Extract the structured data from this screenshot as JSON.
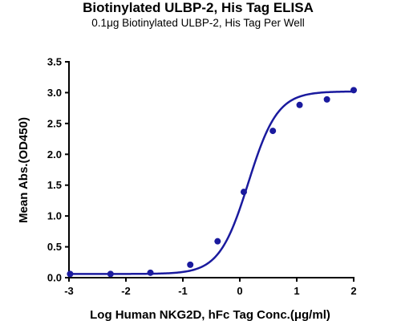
{
  "chart_data": {
    "type": "scatter",
    "title": "Biotinylated ULBP-2, His Tag ELISA",
    "subtitle": "0.1μg Biotinylated ULBP-2, His Tag Per Well",
    "xlabel": "Log Human NKG2D, hFc Tag Conc.(μg/ml)",
    "ylabel": "Mean Abs.(OD450)",
    "xlim": [
      -3,
      2
    ],
    "ylim": [
      0,
      3.5
    ],
    "x_ticks": [
      -3,
      -2,
      -1,
      0,
      1,
      2
    ],
    "y_ticks": [
      0.0,
      0.5,
      1.0,
      1.5,
      2.0,
      2.5,
      3.0,
      3.5
    ],
    "x_tick_labels": [
      "-3",
      "-2",
      "-1",
      "0",
      "1",
      "2"
    ],
    "y_tick_labels": [
      "0.0",
      "0.5",
      "1.0",
      "1.5",
      "2.0",
      "2.5",
      "3.0",
      "3.5"
    ],
    "grid": false,
    "color": "#1a1a9e",
    "points": {
      "x": [
        -2.98,
        -2.27,
        -1.57,
        -0.87,
        -0.39,
        0.07,
        0.58,
        1.05,
        1.53,
        2.0
      ],
      "y": [
        0.06,
        0.06,
        0.08,
        0.21,
        0.59,
        1.39,
        2.38,
        2.8,
        2.89,
        3.04
      ]
    },
    "fit_curve": {
      "type": "4PL",
      "bottom": 0.06,
      "top": 3.02,
      "logEC50": 0.15,
      "hill": 1.7
    }
  }
}
